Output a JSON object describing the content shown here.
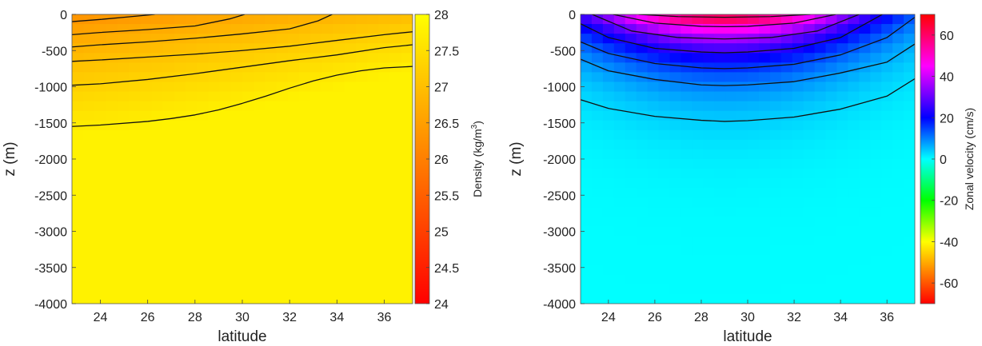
{
  "chart_data": [
    {
      "type": "heatmap",
      "title": "",
      "xlabel": "latitude",
      "ylabel": "z (m)",
      "xlim": [
        22.8,
        37.2
      ],
      "ylim": [
        -4000,
        0
      ],
      "x_ticks": [
        24,
        26,
        28,
        30,
        32,
        34,
        36
      ],
      "y_ticks": [
        0,
        -500,
        -1000,
        -1500,
        -2000,
        -2500,
        -3000,
        -3500,
        -4000
      ],
      "colorbar": {
        "label": "Density (kg/m",
        "label_sup": "3",
        "label_tail": ")",
        "range": [
          24,
          28
        ],
        "ticks": [
          "28",
          "27.5",
          "27",
          "26.5",
          "26",
          "25.5",
          "25",
          "24.5",
          "24"
        ],
        "colormap": "autumn",
        "colors": [
          "#ff0000",
          "#ffff00"
        ]
      },
      "field_description_values": {
        "surface_south": 26.2,
        "surface_north": 26.9,
        "deep": 27.8
      },
      "contours": [
        {
          "points": [
            [
              22.8,
              -100
            ],
            [
              24,
              -70
            ],
            [
              25,
              -40
            ],
            [
              26,
              -10
            ],
            [
              26.3,
              0
            ]
          ]
        },
        {
          "points": [
            [
              22.8,
              -280
            ],
            [
              24,
              -250
            ],
            [
              26,
              -210
            ],
            [
              28,
              -160
            ],
            [
              29.5,
              -60
            ],
            [
              30.1,
              0
            ]
          ]
        },
        {
          "points": [
            [
              22.8,
              -450
            ],
            [
              24,
              -420
            ],
            [
              26,
              -380
            ],
            [
              28,
              -330
            ],
            [
              30,
              -270
            ],
            [
              32,
              -200
            ],
            [
              33.2,
              -90
            ],
            [
              33.8,
              0
            ]
          ]
        },
        {
          "points": [
            [
              22.8,
              -650
            ],
            [
              24,
              -630
            ],
            [
              26,
              -590
            ],
            [
              28,
              -550
            ],
            [
              30,
              -500
            ],
            [
              32,
              -440
            ],
            [
              34,
              -360
            ],
            [
              36,
              -280
            ],
            [
              37.2,
              -240
            ]
          ]
        },
        {
          "points": [
            [
              22.8,
              -980
            ],
            [
              24,
              -960
            ],
            [
              26,
              -900
            ],
            [
              28,
              -820
            ],
            [
              30,
              -730
            ],
            [
              32,
              -640
            ],
            [
              34,
              -560
            ],
            [
              36,
              -460
            ],
            [
              37.2,
              -420
            ]
          ]
        },
        {
          "points": [
            [
              22.8,
              -1550
            ],
            [
              24,
              -1530
            ],
            [
              26,
              -1480
            ],
            [
              27,
              -1440
            ],
            [
              28,
              -1390
            ],
            [
              29,
              -1320
            ],
            [
              30,
              -1230
            ],
            [
              31,
              -1130
            ],
            [
              32,
              -1020
            ],
            [
              33,
              -920
            ],
            [
              34,
              -840
            ],
            [
              35,
              -780
            ],
            [
              36,
              -740
            ],
            [
              37.2,
              -720
            ]
          ]
        }
      ]
    },
    {
      "type": "heatmap",
      "title": "",
      "xlabel": "latitude",
      "ylabel": "z (m)",
      "xlim": [
        22.8,
        37.2
      ],
      "ylim": [
        -4000,
        0
      ],
      "x_ticks": [
        24,
        26,
        28,
        30,
        32,
        34,
        36
      ],
      "y_ticks": [
        0,
        -500,
        -1000,
        -1500,
        -2000,
        -2500,
        -3000,
        -3500,
        -4000
      ],
      "colorbar": {
        "label": "Zonal velocity (cm/s)",
        "range": [
          -70,
          70
        ],
        "ticks": [
          "60",
          "40",
          "20",
          "0",
          "-20",
          "-40",
          "-60"
        ],
        "tick_values": [
          60,
          40,
          20,
          0,
          -20,
          -40,
          -60
        ],
        "colormap": "hsv-like",
        "stops": [
          {
            "v": -70,
            "c": "#ff0000"
          },
          {
            "v": -40,
            "c": "#ffff00"
          },
          {
            "v": -20,
            "c": "#00ff00"
          },
          {
            "v": 0,
            "c": "#00ffff"
          },
          {
            "v": 20,
            "c": "#0000ff"
          },
          {
            "v": 45,
            "c": "#ff00ff"
          },
          {
            "v": 70,
            "c": "#ff0000"
          }
        ]
      },
      "field_description_values": {
        "jet_center_lat": 29,
        "surface_max": 68,
        "deep": 0
      },
      "contours": [
        {
          "points": [
            [
              25.3,
              0
            ],
            [
              27,
              -30
            ],
            [
              29,
              -40
            ],
            [
              31,
              -30
            ],
            [
              32.7,
              0
            ]
          ]
        },
        {
          "points": [
            [
              24.2,
              0
            ],
            [
              26,
              -120
            ],
            [
              28,
              -165
            ],
            [
              29,
              -170
            ],
            [
              30,
              -165
            ],
            [
              32,
              -120
            ],
            [
              33.8,
              0
            ]
          ]
        },
        {
          "points": [
            [
              23.3,
              0
            ],
            [
              25,
              -230
            ],
            [
              27,
              -320
            ],
            [
              29,
              -340
            ],
            [
              31,
              -320
            ],
            [
              33,
              -230
            ],
            [
              34.8,
              0
            ]
          ]
        },
        {
          "points": [
            [
              22.8,
              -130
            ],
            [
              24,
              -320
            ],
            [
              26,
              -470
            ],
            [
              28,
              -520
            ],
            [
              29,
              -530
            ],
            [
              30,
              -520
            ],
            [
              32,
              -470
            ],
            [
              34,
              -320
            ],
            [
              35.8,
              0
            ]
          ]
        },
        {
          "points": [
            [
              22.8,
              -380
            ],
            [
              24,
              -540
            ],
            [
              26,
              -680
            ],
            [
              28,
              -740
            ],
            [
              29,
              -750
            ],
            [
              30,
              -740
            ],
            [
              32,
              -690
            ],
            [
              34,
              -560
            ],
            [
              36,
              -320
            ],
            [
              37.2,
              -40
            ]
          ]
        },
        {
          "points": [
            [
              22.8,
              -620
            ],
            [
              24,
              -780
            ],
            [
              26,
              -900
            ],
            [
              28,
              -975
            ],
            [
              29,
              -985
            ],
            [
              30,
              -975
            ],
            [
              32,
              -930
            ],
            [
              34,
              -810
            ],
            [
              36,
              -660
            ],
            [
              37.2,
              -410
            ]
          ]
        },
        {
          "points": [
            [
              22.8,
              -1180
            ],
            [
              24,
              -1300
            ],
            [
              26,
              -1410
            ],
            [
              28,
              -1465
            ],
            [
              29,
              -1480
            ],
            [
              30,
              -1470
            ],
            [
              32,
              -1420
            ],
            [
              34,
              -1310
            ],
            [
              36,
              -1130
            ],
            [
              37.2,
              -890
            ]
          ]
        }
      ]
    }
  ]
}
